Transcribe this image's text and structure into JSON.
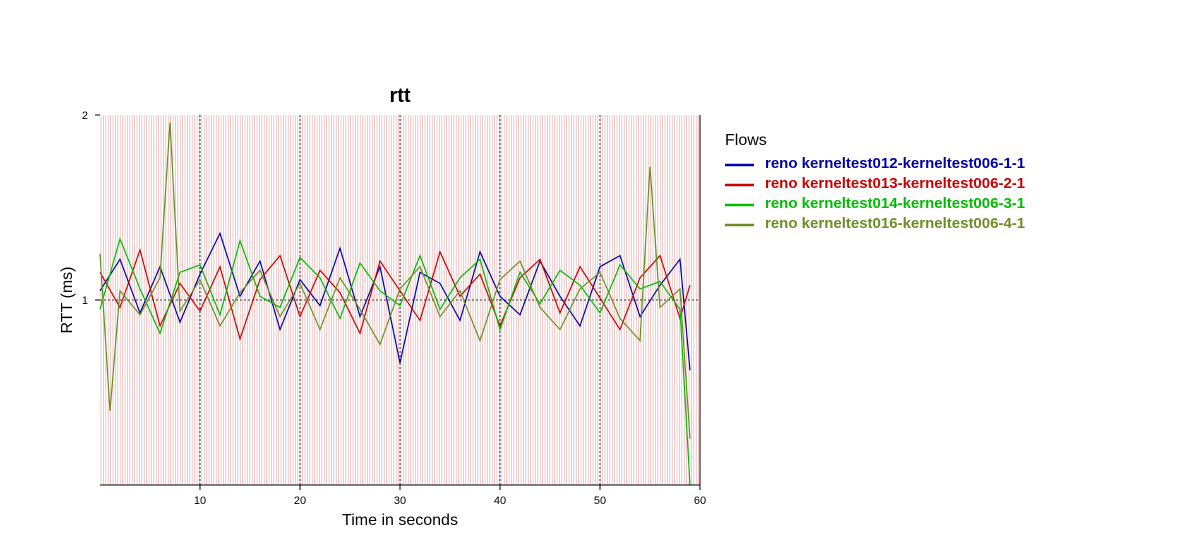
{
  "chart_data": {
    "type": "line",
    "title": "rtt",
    "xlabel": "Time in seconds",
    "ylabel": "RTT (ms)",
    "xlim": [
      0,
      60
    ],
    "ylim": [
      0,
      2
    ],
    "xticks": [
      10,
      20,
      30,
      40,
      50,
      60
    ],
    "yticks": [
      1,
      2
    ],
    "grid": true,
    "legend_title": "Flows",
    "legend_position": "right",
    "series": [
      {
        "name": "reno kerneltest012-kerneltest006-1-1",
        "color": "#0000aa",
        "x": [
          0,
          2,
          4,
          6,
          8,
          10,
          12,
          14,
          16,
          18,
          20,
          22,
          24,
          26,
          28,
          30,
          32,
          34,
          36,
          38,
          40,
          42,
          44,
          46,
          48,
          50,
          52,
          54,
          56,
          58,
          59
        ],
        "y": [
          1.05,
          1.22,
          0.93,
          1.18,
          0.88,
          1.14,
          1.36,
          1.02,
          1.21,
          0.84,
          1.11,
          0.97,
          1.28,
          0.91,
          1.18,
          0.66,
          1.15,
          1.09,
          0.89,
          1.26,
          1.02,
          0.92,
          1.21,
          1.02,
          0.86,
          1.18,
          1.24,
          0.91,
          1.08,
          1.22,
          0.62
        ]
      },
      {
        "name": "reno kerneltest013-kerneltest006-2-1",
        "color": "#cc0000",
        "x": [
          0,
          2,
          4,
          6,
          8,
          10,
          12,
          14,
          16,
          18,
          20,
          22,
          24,
          26,
          28,
          30,
          32,
          34,
          36,
          38,
          40,
          42,
          44,
          46,
          48,
          50,
          52,
          54,
          56,
          58,
          59
        ],
        "y": [
          1.15,
          0.96,
          1.27,
          0.86,
          1.09,
          0.94,
          1.18,
          0.79,
          1.11,
          1.24,
          0.91,
          1.16,
          1.04,
          0.82,
          1.21,
          1.05,
          0.89,
          1.26,
          1.02,
          1.14,
          0.86,
          1.12,
          1.22,
          0.93,
          1.18,
          1.01,
          0.84,
          1.12,
          1.24,
          0.9,
          1.08
        ]
      },
      {
        "name": "reno kerneltest014-kerneltest006-3-1",
        "color": "#00bb00",
        "x": [
          0,
          2,
          4,
          6,
          8,
          10,
          12,
          14,
          16,
          18,
          20,
          22,
          24,
          26,
          28,
          30,
          32,
          34,
          36,
          38,
          40,
          42,
          44,
          46,
          48,
          50,
          52,
          54,
          56,
          58,
          59
        ],
        "y": [
          0.95,
          1.33,
          1.06,
          0.82,
          1.15,
          1.19,
          0.92,
          1.32,
          1.02,
          0.96,
          1.23,
          1.12,
          0.9,
          1.2,
          1.05,
          0.97,
          1.24,
          0.95,
          1.12,
          1.22,
          0.84,
          1.15,
          0.98,
          1.16,
          1.08,
          0.93,
          1.19,
          1.06,
          1.1,
          0.95,
          0.0
        ]
      },
      {
        "name": "reno kerneltest016-kerneltest006-4-1",
        "color": "#6b8e23",
        "x": [
          0,
          1,
          2,
          4,
          6,
          7,
          8,
          10,
          12,
          14,
          16,
          18,
          20,
          22,
          24,
          26,
          28,
          30,
          32,
          34,
          36,
          38,
          40,
          42,
          44,
          46,
          48,
          50,
          52,
          54,
          55,
          56,
          58,
          59
        ],
        "y": [
          1.25,
          0.4,
          1.05,
          0.92,
          1.12,
          1.96,
          0.94,
          1.11,
          0.86,
          1.04,
          1.16,
          0.91,
          1.09,
          0.84,
          1.12,
          0.95,
          0.76,
          1.06,
          1.18,
          0.91,
          1.05,
          0.78,
          1.11,
          1.21,
          0.96,
          0.84,
          1.06,
          1.15,
          0.9,
          0.78,
          1.72,
          0.96,
          1.06,
          0.25
        ]
      }
    ]
  }
}
